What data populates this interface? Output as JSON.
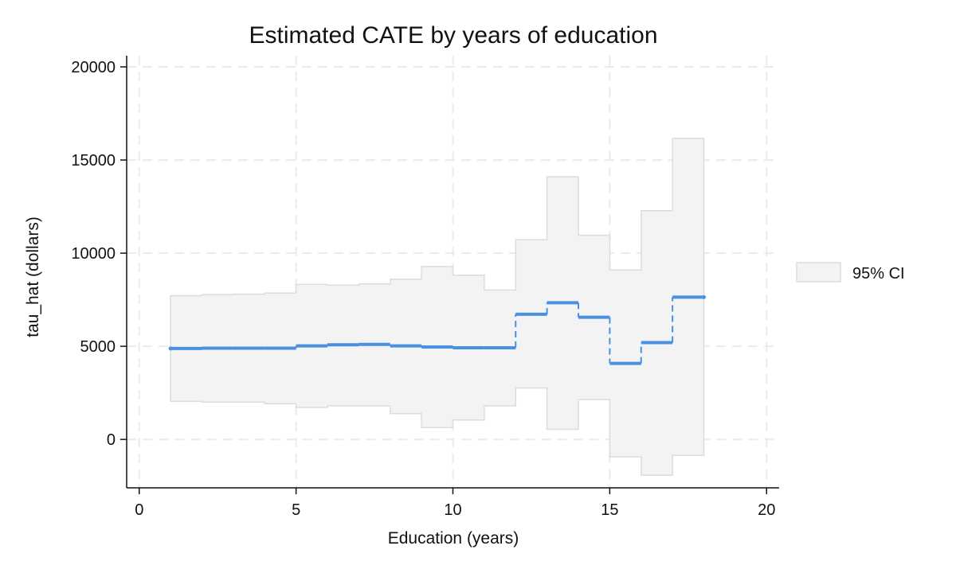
{
  "chart_data": {
    "type": "line",
    "title": "Estimated CATE by years of education",
    "xlabel": "Education (years)",
    "ylabel": "tau_hat (dollars)",
    "xlim": [
      -0.4,
      20.4
    ],
    "ylim": [
      -2600,
      20600
    ],
    "xticks": [
      0,
      5,
      10,
      15,
      20
    ],
    "yticks": [
      0,
      5000,
      10000,
      15000,
      20000
    ],
    "xtick_labels": [
      "0",
      "5",
      "10",
      "15",
      "20"
    ],
    "ytick_labels": [
      "0",
      "5000",
      "10000",
      "15000",
      "20000"
    ],
    "grid": true,
    "legend_position": "right",
    "ci_color": "#f3f3f3",
    "ci_edge_color": "#dcdcdc",
    "line_color": "#4a90e2",
    "legend": [
      {
        "label": "95% CI"
      }
    ],
    "steps": [
      {
        "x0": 1,
        "x1": 2,
        "estimate": 4880,
        "ci_low": 2050,
        "ci_high": 7720
      },
      {
        "x0": 2,
        "x1": 3,
        "estimate": 4900,
        "ci_low": 2000,
        "ci_high": 7780
      },
      {
        "x0": 3,
        "x1": 4,
        "estimate": 4900,
        "ci_low": 2000,
        "ci_high": 7800
      },
      {
        "x0": 4,
        "x1": 5,
        "estimate": 4900,
        "ci_low": 1920,
        "ci_high": 7860
      },
      {
        "x0": 5,
        "x1": 6,
        "estimate": 5020,
        "ci_low": 1720,
        "ci_high": 8320
      },
      {
        "x0": 6,
        "x1": 7,
        "estimate": 5080,
        "ci_low": 1800,
        "ci_high": 8280
      },
      {
        "x0": 7,
        "x1": 8,
        "estimate": 5100,
        "ci_low": 1800,
        "ci_high": 8350
      },
      {
        "x0": 8,
        "x1": 9,
        "estimate": 5020,
        "ci_low": 1380,
        "ci_high": 8600
      },
      {
        "x0": 9,
        "x1": 10,
        "estimate": 4960,
        "ci_low": 640,
        "ci_high": 9280
      },
      {
        "x0": 10,
        "x1": 11,
        "estimate": 4920,
        "ci_low": 1040,
        "ci_high": 8820
      },
      {
        "x0": 11,
        "x1": 12,
        "estimate": 4920,
        "ci_low": 1800,
        "ci_high": 8020
      },
      {
        "x0": 12,
        "x1": 13,
        "estimate": 6720,
        "ci_low": 2760,
        "ci_high": 10720
      },
      {
        "x0": 13,
        "x1": 14,
        "estimate": 7340,
        "ci_low": 540,
        "ci_high": 14100
      },
      {
        "x0": 14,
        "x1": 15,
        "estimate": 6560,
        "ci_low": 2140,
        "ci_high": 10960
      },
      {
        "x0": 15,
        "x1": 16,
        "estimate": 4080,
        "ci_low": -940,
        "ci_high": 9100
      },
      {
        "x0": 16,
        "x1": 17,
        "estimate": 5200,
        "ci_low": -1920,
        "ci_high": 12280
      },
      {
        "x0": 17,
        "x1": 18,
        "estimate": 7640,
        "ci_low": -860,
        "ci_high": 16160
      }
    ]
  }
}
